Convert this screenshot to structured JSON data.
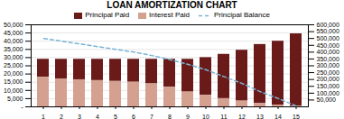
{
  "chart_data": {
    "type": "bar",
    "title": "LOAN AMORTIZATION CHART",
    "stacked": true,
    "grid": true,
    "legend": "top",
    "categories": [
      "1",
      "2",
      "3",
      "4",
      "5",
      "6",
      "7",
      "8",
      "9",
      "10",
      "11",
      "12",
      "13",
      "14",
      "15"
    ],
    "series": [
      {
        "name": "Principal Paid",
        "type": "bar",
        "color": "#6b1a1a",
        "values": [
          11000,
          12000,
          12500,
          13000,
          13500,
          14000,
          15000,
          17000,
          20000,
          23000,
          27000,
          31000,
          36000,
          39000,
          44000
        ]
      },
      {
        "name": "Interest Paid",
        "type": "bar",
        "color": "#d4a090",
        "values": [
          18000,
          17000,
          16500,
          16000,
          15500,
          15000,
          14000,
          12000,
          9000,
          7000,
          5000,
          3500,
          2000,
          1000,
          500
        ]
      },
      {
        "name": "Principal Balance",
        "type": "line",
        "line_style": "dashed",
        "axis": "y2",
        "color": "#7ab4d4",
        "values": [
          500000,
          480000,
          460000,
          440000,
          420000,
          400000,
          375000,
          345000,
          310000,
          270000,
          220000,
          170000,
          110000,
          60000,
          5000
        ]
      }
    ],
    "ylim": [
      0,
      50000
    ],
    "yticks": [
      {
        "value": 0,
        "label": "-"
      },
      {
        "value": 5000,
        "label": "5,000"
      },
      {
        "value": 10000,
        "label": "10,000"
      },
      {
        "value": 15000,
        "label": "15,000"
      },
      {
        "value": 20000,
        "label": "20,000"
      },
      {
        "value": 25000,
        "label": "25,000"
      },
      {
        "value": 30000,
        "label": "30,000"
      },
      {
        "value": 35000,
        "label": "35,000"
      },
      {
        "value": 40000,
        "label": "40,000"
      },
      {
        "value": 45000,
        "label": "45,000"
      },
      {
        "value": 50000,
        "label": "50,000"
      }
    ],
    "y2lim": [
      0,
      600000
    ],
    "y2ticks": [
      {
        "value": 50000,
        "label": "50,000"
      },
      {
        "value": 100000,
        "label": "100,000"
      },
      {
        "value": 150000,
        "label": "150,000"
      },
      {
        "value": 200000,
        "label": "200,000"
      },
      {
        "value": 250000,
        "label": "250,000"
      },
      {
        "value": 300000,
        "label": "300,000"
      },
      {
        "value": 350000,
        "label": "350,000"
      },
      {
        "value": 400000,
        "label": "400,000"
      },
      {
        "value": 450000,
        "label": "450,000"
      },
      {
        "value": 500000,
        "label": "500,000"
      },
      {
        "value": 550000,
        "label": "550,000"
      },
      {
        "value": 600000,
        "label": "600,000"
      }
    ]
  }
}
